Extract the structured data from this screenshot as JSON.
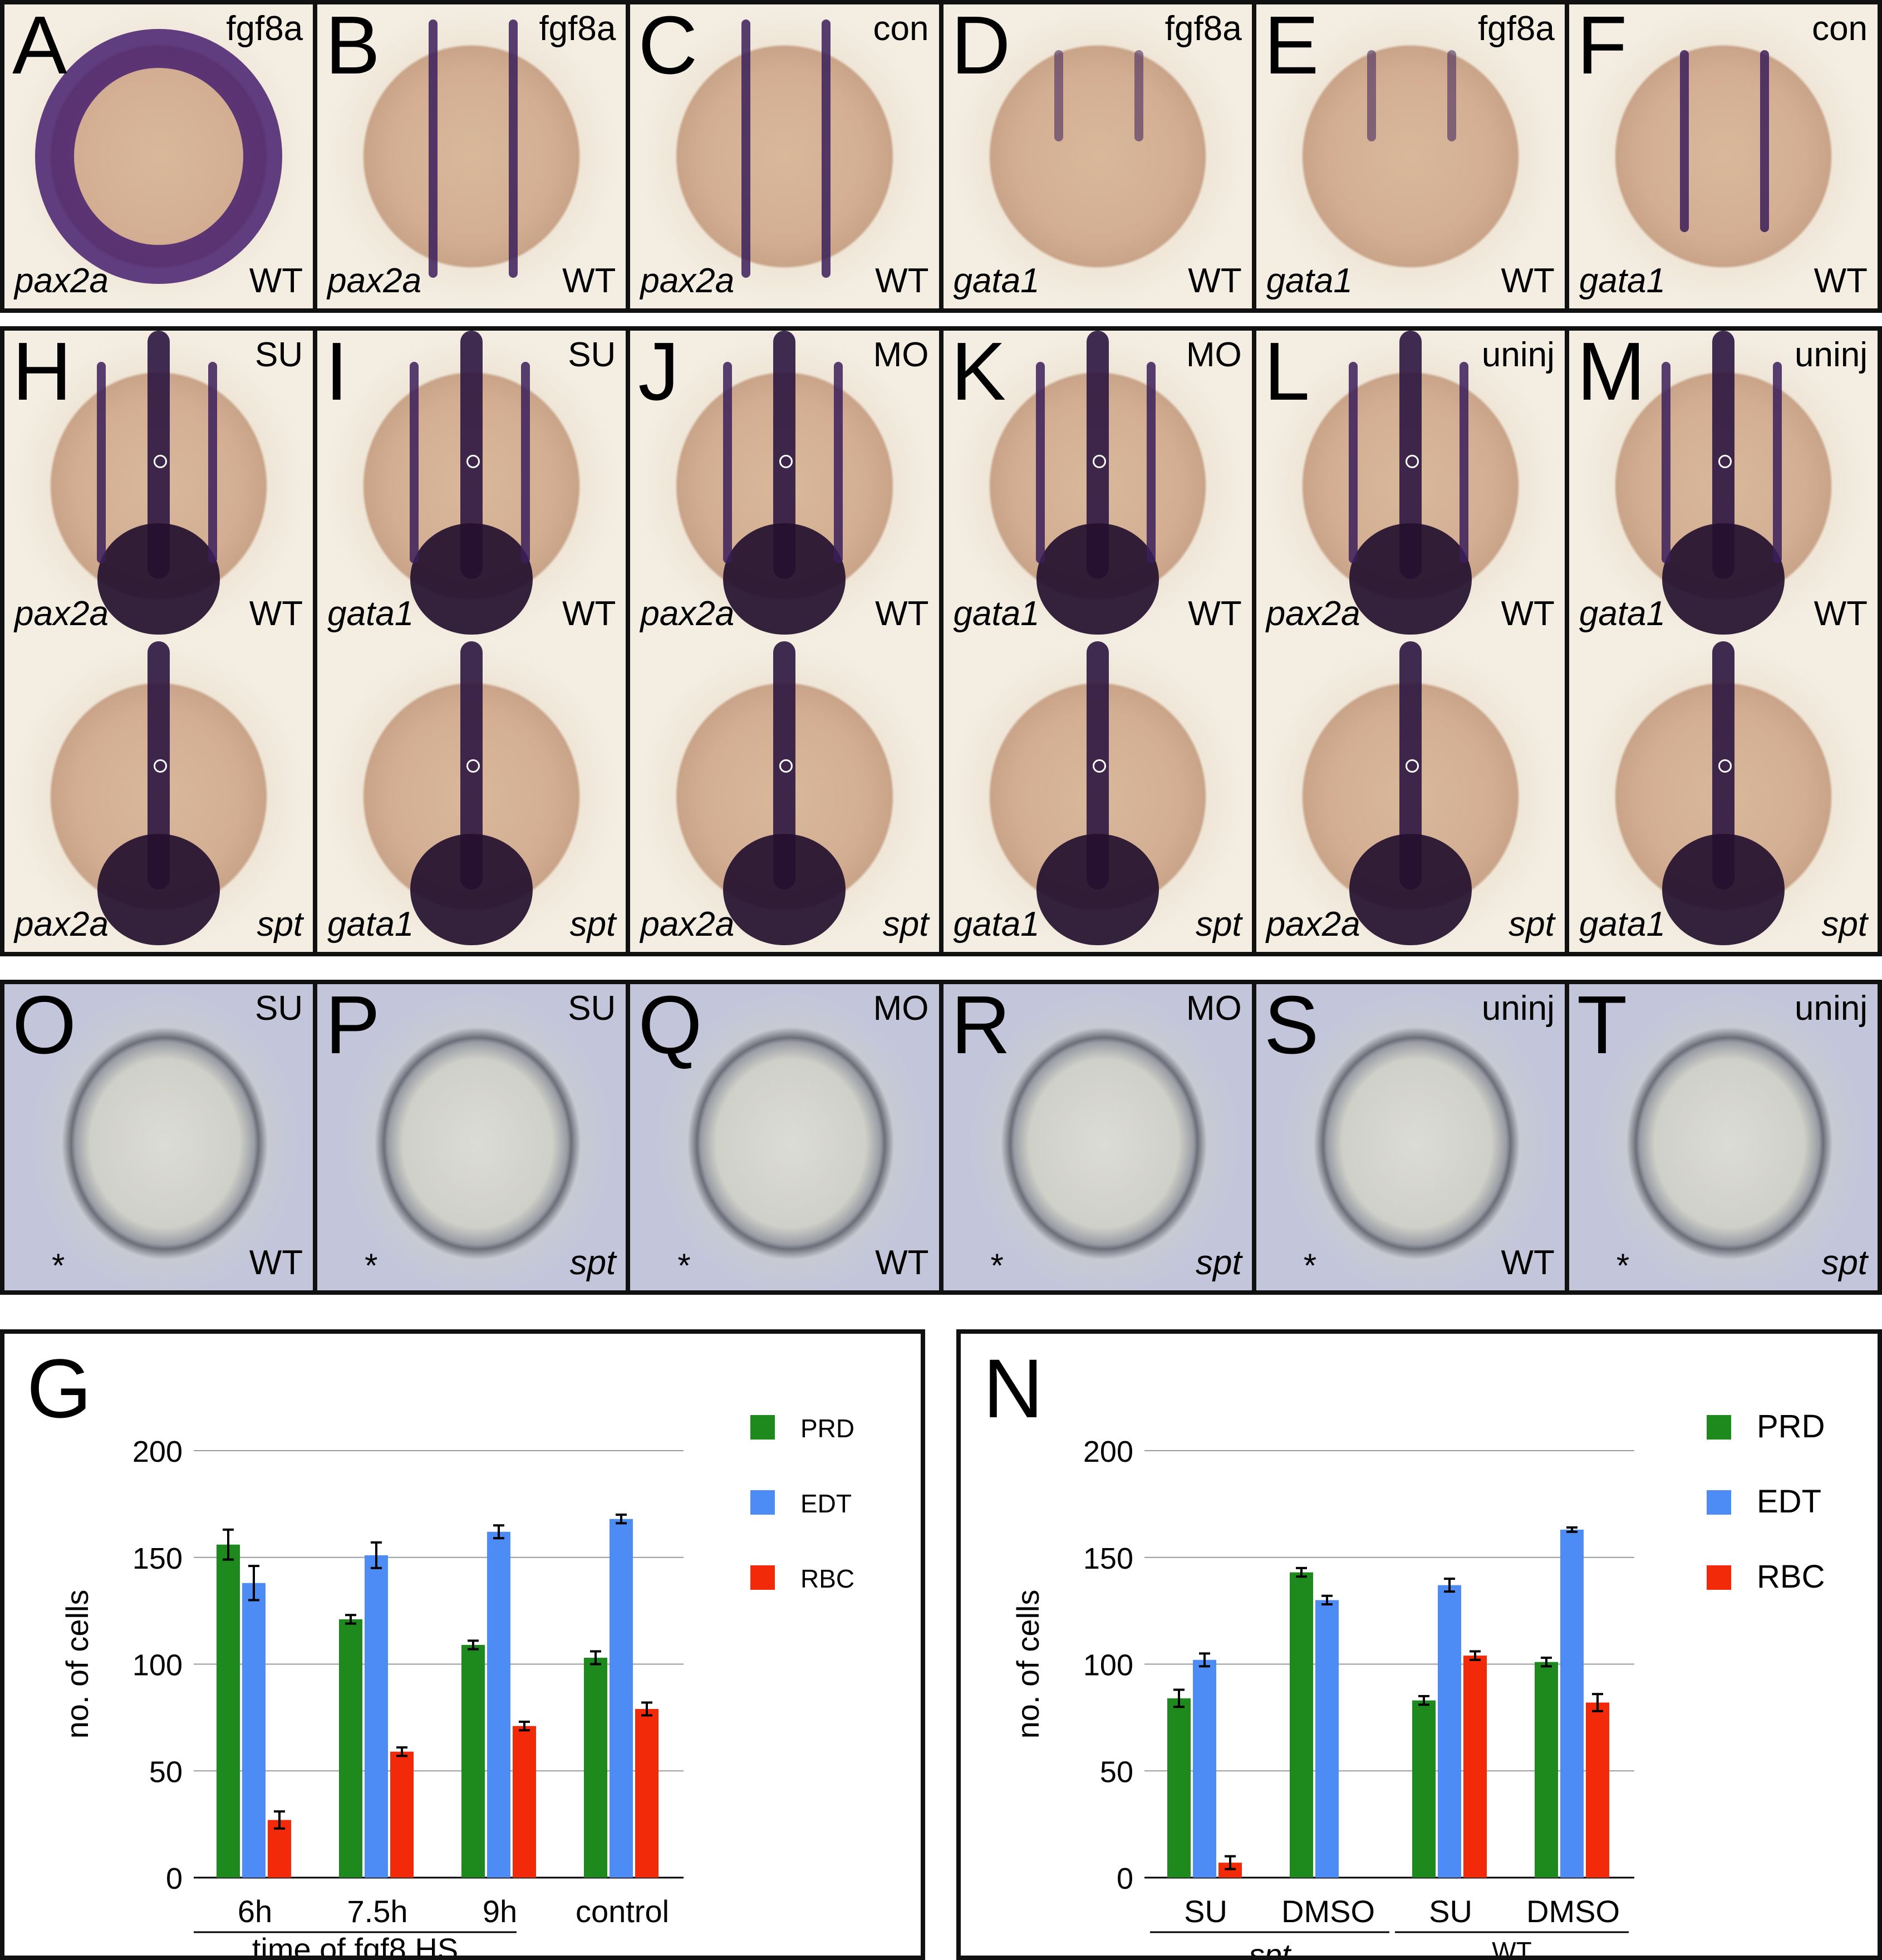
{
  "row1": [
    {
      "letter": "A",
      "top": "fgf8a",
      "bl": "pax2a",
      "br": "WT"
    },
    {
      "letter": "B",
      "top": "fgf8a",
      "bl": "pax2a",
      "br": "WT"
    },
    {
      "letter": "C",
      "top": "con",
      "bl": "pax2a",
      "br": "WT"
    },
    {
      "letter": "D",
      "top": "fgf8a",
      "bl": "gata1",
      "br": "WT"
    },
    {
      "letter": "E",
      "top": "fgf8a",
      "bl": "gata1",
      "br": "WT"
    },
    {
      "letter": "F",
      "top": "con",
      "bl": "gata1",
      "br": "WT"
    }
  ],
  "row2": [
    {
      "letter": "H",
      "top": "SU",
      "top_bl": "pax2a",
      "top_br": "WT",
      "bot_bl": "pax2a",
      "bot_br": "spt"
    },
    {
      "letter": "I",
      "top": "SU",
      "top_bl": "gata1",
      "top_br": "WT",
      "bot_bl": "gata1",
      "bot_br": "spt"
    },
    {
      "letter": "J",
      "top": "MO",
      "top_bl": "pax2a",
      "top_br": "WT",
      "bot_bl": "pax2a",
      "bot_br": "spt"
    },
    {
      "letter": "K",
      "top": "MO",
      "top_bl": "gata1",
      "top_br": "WT",
      "bot_bl": "gata1",
      "bot_br": "spt"
    },
    {
      "letter": "L",
      "top": "uninj",
      "top_bl": "pax2a",
      "top_br": "WT",
      "bot_bl": "pax2a",
      "bot_br": "spt"
    },
    {
      "letter": "M",
      "top": "uninj",
      "top_bl": "gata1",
      "top_br": "WT",
      "bot_bl": "gata1",
      "bot_br": "spt"
    }
  ],
  "row3": [
    {
      "letter": "O",
      "top": "SU",
      "br": "WT",
      "star": "*"
    },
    {
      "letter": "P",
      "top": "SU",
      "br": "spt",
      "star": "*"
    },
    {
      "letter": "Q",
      "top": "MO",
      "br": "WT",
      "star": "*"
    },
    {
      "letter": "R",
      "top": "MO",
      "br": "spt",
      "star": "*"
    },
    {
      "letter": "S",
      "top": "uninj",
      "br": "WT",
      "star": "*"
    },
    {
      "letter": "T",
      "top": "uninj",
      "br": "spt",
      "star": "*"
    }
  ],
  "colors": {
    "PRD": "#1e8a1e",
    "EDT": "#4d8cf5",
    "RBC": "#f22a0a"
  },
  "chart_data": [
    {
      "panel": "G",
      "type": "bar",
      "ylabel": "no. of cells",
      "xlabel": "time of fgf8 HS",
      "ylim": [
        0,
        200
      ],
      "yticks": [
        0,
        50,
        100,
        150,
        200
      ],
      "categories": [
        "6h",
        "7.5h",
        "9h",
        "control"
      ],
      "series": [
        {
          "name": "PRD",
          "values": [
            156,
            121,
            109,
            103
          ],
          "errors": [
            7,
            2,
            2,
            3
          ]
        },
        {
          "name": "EDT",
          "values": [
            138,
            151,
            162,
            168
          ],
          "errors": [
            8,
            6,
            3,
            2
          ]
        },
        {
          "name": "RBC",
          "values": [
            27,
            59,
            71,
            79
          ],
          "errors": [
            4,
            2,
            2,
            3
          ]
        }
      ]
    },
    {
      "panel": "N",
      "type": "bar",
      "ylabel": "no. of cells",
      "ylim": [
        0,
        200
      ],
      "yticks": [
        0,
        50,
        100,
        150,
        200
      ],
      "categories": [
        "SU",
        "DMSO",
        "SU",
        "DMSO"
      ],
      "groups": [
        {
          "label": "spt",
          "italic": true
        },
        {
          "label": "WT",
          "italic": false
        }
      ],
      "series": [
        {
          "name": "PRD",
          "values": [
            84,
            143,
            83,
            101
          ],
          "errors": [
            4,
            2,
            2,
            2
          ]
        },
        {
          "name": "EDT",
          "values": [
            102,
            130,
            137,
            163
          ],
          "errors": [
            3,
            2,
            3,
            1
          ]
        },
        {
          "name": "RBC",
          "values": [
            7,
            null,
            104,
            82
          ],
          "errors": [
            3,
            null,
            2,
            4
          ]
        }
      ]
    }
  ]
}
